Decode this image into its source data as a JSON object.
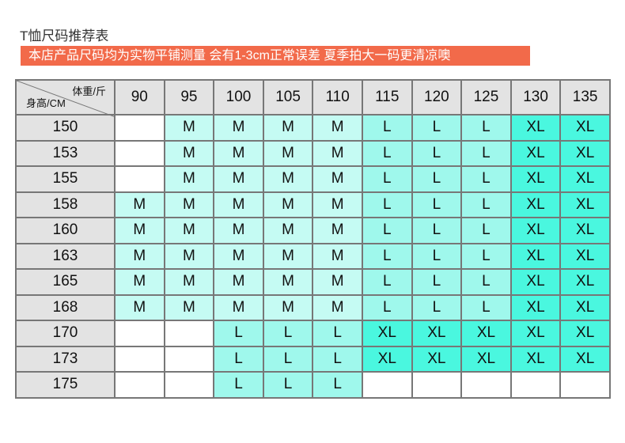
{
  "title": "T恤尺码推荐表",
  "notice": "本店产品尺码均为实物平铺测量 会有1-3cm正常误差 夏季拍大一码更清凉噢",
  "table": {
    "corner_weight": "体重/斤",
    "corner_height": "身高/CM",
    "weights": [
      "90",
      "95",
      "100",
      "105",
      "110",
      "115",
      "120",
      "125",
      "130",
      "135"
    ],
    "rows": [
      {
        "height": "150",
        "sizes": [
          "",
          "M",
          "M",
          "M",
          "M",
          "L",
          "L",
          "L",
          "XL",
          "XL"
        ]
      },
      {
        "height": "153",
        "sizes": [
          "",
          "M",
          "M",
          "M",
          "M",
          "L",
          "L",
          "L",
          "XL",
          "XL"
        ]
      },
      {
        "height": "155",
        "sizes": [
          "",
          "M",
          "M",
          "M",
          "M",
          "L",
          "L",
          "L",
          "XL",
          "XL"
        ]
      },
      {
        "height": "158",
        "sizes": [
          "M",
          "M",
          "M",
          "M",
          "M",
          "L",
          "L",
          "L",
          "XL",
          "XL"
        ]
      },
      {
        "height": "160",
        "sizes": [
          "M",
          "M",
          "M",
          "M",
          "M",
          "L",
          "L",
          "L",
          "XL",
          "XL"
        ]
      },
      {
        "height": "163",
        "sizes": [
          "M",
          "M",
          "M",
          "M",
          "M",
          "L",
          "L",
          "L",
          "XL",
          "XL"
        ]
      },
      {
        "height": "165",
        "sizes": [
          "M",
          "M",
          "M",
          "M",
          "M",
          "L",
          "L",
          "L",
          "XL",
          "XL"
        ]
      },
      {
        "height": "168",
        "sizes": [
          "M",
          "M",
          "M",
          "M",
          "M",
          "L",
          "L",
          "L",
          "XL",
          "XL"
        ]
      },
      {
        "height": "170",
        "sizes": [
          "",
          "",
          "L",
          "L",
          "L",
          "XL",
          "XL",
          "XL",
          "XL",
          "XL"
        ]
      },
      {
        "height": "173",
        "sizes": [
          "",
          "",
          "L",
          "L",
          "L",
          "XL",
          "XL",
          "XL",
          "XL",
          "XL"
        ]
      },
      {
        "height": "175",
        "sizes": [
          "",
          "",
          "L",
          "L",
          "L",
          "",
          "",
          "",
          "",
          ""
        ]
      }
    ]
  },
  "colors": {
    "banner": "#f26a4a",
    "M": "#c5fbf3",
    "L": "#9ff8ec",
    "XL": "#4af7df",
    "header": "#e3e3e3"
  }
}
